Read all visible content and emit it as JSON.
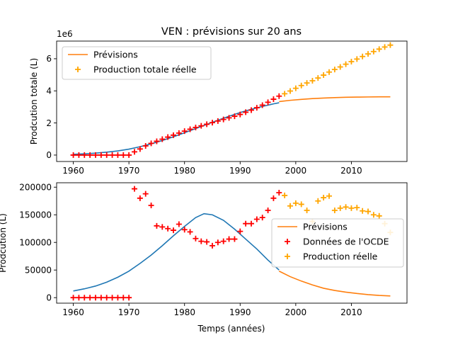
{
  "title": "VEN : prévisions sur 20 ans",
  "chart_data": [
    {
      "type": "line",
      "ylabel": "Prodcution totale (L)",
      "y_offset_label": "1e6",
      "xlim": [
        1957,
        2020
      ],
      "ylim": [
        -0.4,
        7.1
      ],
      "xticks": [
        "1960",
        "1970",
        "1980",
        "1990",
        "2000",
        "2010"
      ],
      "yticks": [
        "0",
        "2",
        "4",
        "6"
      ],
      "legend": {
        "position": "top-left",
        "entries": [
          "Prévisions",
          "Production totale réelle"
        ]
      },
      "series": [
        {
          "name": "",
          "kind": "line",
          "color": "#1f77b4",
          "x": [
            1960,
            1962,
            1964,
            1966,
            1968,
            1970,
            1972,
            1974,
            1976,
            1978,
            1980,
            1982,
            1984,
            1986,
            1988,
            1990,
            1992,
            1994,
            1996,
            1997
          ],
          "y": [
            0.05,
            0.08,
            0.12,
            0.18,
            0.26,
            0.37,
            0.52,
            0.7,
            0.91,
            1.14,
            1.39,
            1.65,
            1.91,
            2.17,
            2.42,
            2.65,
            2.85,
            3.03,
            3.19,
            3.26
          ]
        },
        {
          "name": "Prévisions",
          "kind": "line",
          "color": "#ff7f0e",
          "x": [
            1997,
            1999,
            2001,
            2003,
            2005,
            2007,
            2009,
            2011,
            2013,
            2015,
            2017
          ],
          "y": [
            3.33,
            3.41,
            3.47,
            3.52,
            3.55,
            3.58,
            3.6,
            3.61,
            3.62,
            3.63,
            3.63
          ]
        },
        {
          "name": "Production totale réelle",
          "kind": "scatter",
          "color": "#ffa500",
          "x": [
            1998,
            1999,
            2000,
            2001,
            2002,
            2003,
            2004,
            2005,
            2006,
            2007,
            2008,
            2009,
            2010,
            2011,
            2012,
            2013,
            2014,
            2015,
            2016,
            2017
          ],
          "y": [
            3.82,
            3.99,
            4.16,
            4.33,
            4.49,
            4.63,
            4.8,
            4.98,
            5.17,
            5.33,
            5.49,
            5.66,
            5.82,
            5.98,
            6.14,
            6.3,
            6.45,
            6.6,
            6.73,
            6.85
          ]
        },
        {
          "name": "",
          "kind": "scatter",
          "color": "#ff0000",
          "x": [
            1960,
            1961,
            1962,
            1963,
            1964,
            1965,
            1966,
            1967,
            1968,
            1969,
            1970,
            1971,
            1972,
            1973,
            1974,
            1975,
            1976,
            1977,
            1978,
            1979,
            1980,
            1981,
            1982,
            1983,
            1984,
            1985,
            1986,
            1987,
            1988,
            1989,
            1990,
            1991,
            1992,
            1993,
            1994,
            1995,
            1996,
            1997
          ],
          "y": [
            0,
            0,
            0,
            0,
            0,
            0,
            0,
            0,
            0,
            0,
            0,
            0.2,
            0.38,
            0.57,
            0.73,
            0.86,
            0.99,
            1.12,
            1.24,
            1.37,
            1.49,
            1.61,
            1.72,
            1.82,
            1.92,
            2.02,
            2.12,
            2.22,
            2.32,
            2.42,
            2.53,
            2.67,
            2.8,
            2.95,
            3.11,
            3.29,
            3.48,
            3.67
          ]
        }
      ]
    },
    {
      "type": "line",
      "xlabel": "Temps (années)",
      "ylabel": "Prodcution (L)",
      "xlim": [
        1957,
        2020
      ],
      "ylim": [
        -10000,
        208000
      ],
      "xticks": [
        "1960",
        "1970",
        "1980",
        "1990",
        "2000",
        "2010"
      ],
      "yticks": [
        "0",
        "50000",
        "100000",
        "150000",
        "200000"
      ],
      "legend": {
        "position": "center-right",
        "entries": [
          "Prévisions",
          "Données de l'OCDE",
          "Production réelle"
        ]
      },
      "series": [
        {
          "name": "",
          "kind": "line",
          "color": "#1f77b4",
          "x": [
            1960,
            1962,
            1964,
            1966,
            1968,
            1970,
            1972,
            1974,
            1976,
            1978,
            1980,
            1982,
            1983.5,
            1985,
            1987,
            1989,
            1991,
            1993,
            1995,
            1997
          ],
          "y": [
            12000,
            16000,
            21000,
            28000,
            37000,
            48000,
            62000,
            77000,
            94000,
            112000,
            129000,
            145000,
            152000,
            150000,
            140000,
            124000,
            106000,
            88000,
            68000,
            50000
          ]
        },
        {
          "name": "Prévisions",
          "kind": "line",
          "color": "#ff7f0e",
          "x": [
            1997,
            1999,
            2001,
            2003,
            2005,
            2007,
            2009,
            2011,
            2013,
            2015,
            2017
          ],
          "y": [
            48000,
            38000,
            30000,
            23000,
            17000,
            13000,
            10000,
            7500,
            5500,
            4000,
            3000
          ]
        },
        {
          "name": "Données de l'OCDE",
          "kind": "scatter",
          "color": "#ff0000",
          "x": [
            1960,
            1961,
            1962,
            1963,
            1964,
            1965,
            1966,
            1967,
            1968,
            1969,
            1970,
            1971,
            1972,
            1973,
            1974,
            1975,
            1976,
            1977,
            1978,
            1979,
            1980,
            1981,
            1982,
            1983,
            1984,
            1985,
            1986,
            1987,
            1988,
            1989,
            1990,
            1991,
            1992,
            1993,
            1994,
            1995,
            1996,
            1997
          ],
          "y": [
            0,
            0,
            0,
            0,
            0,
            0,
            0,
            0,
            0,
            0,
            0,
            197000,
            180000,
            188000,
            167000,
            130000,
            128000,
            125000,
            122000,
            133000,
            123000,
            119000,
            107000,
            102000,
            101000,
            94000,
            100000,
            102000,
            106000,
            106000,
            120000,
            134000,
            134000,
            142000,
            145000,
            158000,
            180000,
            190000
          ]
        },
        {
          "name": "Production réelle",
          "kind": "scatter",
          "color": "#ffa500",
          "x": [
            1998,
            1999,
            2000,
            2001,
            2002,
            2003,
            2004,
            2005,
            2006,
            2007,
            2008,
            2009,
            2010,
            2011,
            2012,
            2013,
            2014,
            2015,
            2016,
            2017
          ],
          "y": [
            185000,
            166000,
            171000,
            169000,
            158000,
            138000,
            175000,
            181000,
            184000,
            158000,
            162000,
            164000,
            162000,
            163000,
            157000,
            156000,
            150000,
            148000,
            134000,
            118000
          ]
        }
      ]
    }
  ]
}
